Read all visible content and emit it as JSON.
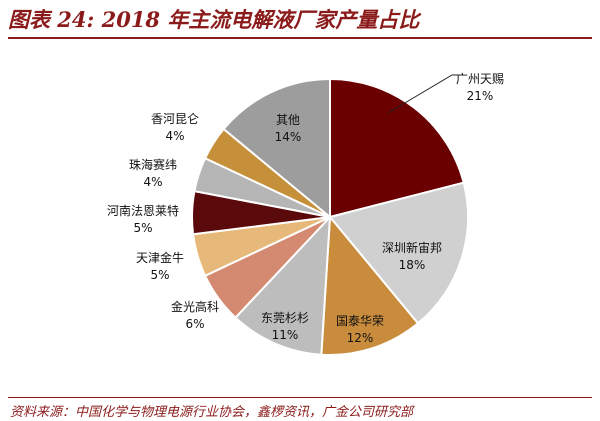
{
  "header": {
    "title": "图表 24: 2018 年主流电解液厂家产量占比"
  },
  "footer": {
    "source": "资料来源：中国化学与物理电源行业协会，鑫椤资讯，广金公司研究部"
  },
  "chart_data": {
    "type": "pie",
    "title": "图表 24: 2018 年主流电解液厂家产量占比",
    "slices": [
      {
        "label": "广州天赐",
        "value": 21,
        "display": "21%",
        "color": "#6b0000"
      },
      {
        "label": "深圳新宙邦",
        "value": 18,
        "display": "18%",
        "color": "#d0d0d0"
      },
      {
        "label": "国泰华荣",
        "value": 12,
        "display": "12%",
        "color": "#c98c3c"
      },
      {
        "label": "东莞杉杉",
        "value": 11,
        "display": "11%",
        "color": "#bdbdbd"
      },
      {
        "label": "金光高科",
        "value": 6,
        "display": "6%",
        "color": "#d48a70"
      },
      {
        "label": "天津金牛",
        "value": 5,
        "display": "5%",
        "color": "#e6b97a"
      },
      {
        "label": "河南法恩莱特",
        "value": 5,
        "display": "5%",
        "color": "#5a0a0a"
      },
      {
        "label": "珠海赛纬",
        "value": 4,
        "display": "4%",
        "color": "#b5b5b5"
      },
      {
        "label": "香河昆仑",
        "value": 4,
        "display": "4%",
        "color": "#c68f3a"
      },
      {
        "label": "其他",
        "value": 14,
        "display": "14%",
        "color": "#9d9d9d"
      }
    ]
  }
}
